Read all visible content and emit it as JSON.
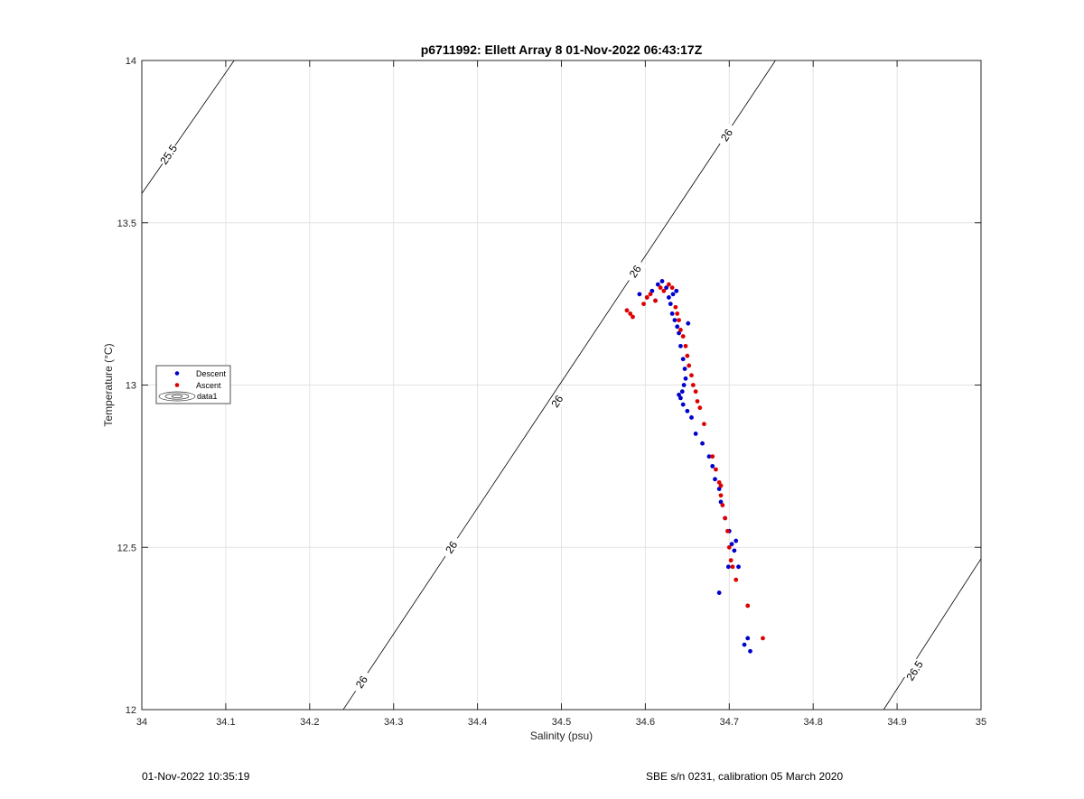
{
  "chart_data": {
    "type": "scatter",
    "title": "p6711992: Ellett Array 8 01-Nov-2022 06:43:17Z",
    "xlabel": "Salinity (psu)",
    "ylabel": "Temperature (°C)",
    "xlim": [
      34,
      35
    ],
    "ylim": [
      12,
      14
    ],
    "xticks": [
      "34",
      "34.1",
      "34.2",
      "34.3",
      "34.4",
      "34.5",
      "34.6",
      "34.7",
      "34.8",
      "34.9",
      "35"
    ],
    "yticks": [
      "12",
      "12.5",
      "13",
      "13.5",
      "14"
    ],
    "grid": true,
    "legend": {
      "placement": "left",
      "entries": [
        "Descent",
        "Ascent",
        "data1"
      ]
    },
    "series": [
      {
        "name": "Descent",
        "color": "#0000cc",
        "x": [
          34.593,
          34.602,
          34.608,
          34.612,
          34.615,
          34.62,
          34.625,
          34.628,
          34.63,
          34.632,
          34.635,
          34.638,
          34.64,
          34.642,
          34.645,
          34.647,
          34.648,
          34.646,
          34.644,
          34.642,
          34.64,
          34.645,
          34.65,
          34.655,
          34.66,
          34.668,
          34.676,
          34.68,
          34.683,
          34.688,
          34.69,
          34.695,
          34.7,
          34.703,
          34.706,
          34.699,
          34.708,
          34.711,
          34.688,
          34.718,
          34.722,
          34.725,
          34.651,
          34.637,
          34.633
        ],
        "y": [
          13.28,
          13.27,
          13.29,
          13.26,
          13.31,
          13.32,
          13.3,
          13.27,
          13.25,
          13.22,
          13.2,
          13.18,
          13.16,
          13.12,
          13.08,
          13.05,
          13.02,
          13.0,
          12.98,
          12.96,
          12.97,
          12.94,
          12.92,
          12.9,
          12.85,
          12.82,
          12.78,
          12.75,
          12.71,
          12.68,
          12.64,
          12.59,
          12.55,
          12.51,
          12.49,
          12.44,
          12.52,
          12.44,
          12.36,
          12.2,
          12.22,
          12.18,
          13.19,
          13.29,
          13.28
        ]
      },
      {
        "name": "Ascent",
        "color": "#dd0000",
        "x": [
          34.578,
          34.582,
          34.585,
          34.598,
          34.602,
          34.606,
          34.612,
          34.618,
          34.622,
          34.628,
          34.632,
          34.636,
          34.638,
          34.64,
          34.642,
          34.645,
          34.648,
          34.65,
          34.652,
          34.655,
          34.657,
          34.66,
          34.662,
          34.665,
          34.67,
          34.68,
          34.684,
          34.688,
          34.69,
          34.692,
          34.695,
          34.698,
          34.7,
          34.702,
          34.704,
          34.708,
          34.69,
          34.722,
          34.74
        ],
        "y": [
          13.23,
          13.22,
          13.21,
          13.25,
          13.27,
          13.28,
          13.26,
          13.3,
          13.29,
          13.31,
          13.3,
          13.24,
          13.22,
          13.2,
          13.17,
          13.15,
          13.12,
          13.09,
          13.06,
          13.03,
          13.0,
          12.98,
          12.95,
          12.93,
          12.88,
          12.78,
          12.74,
          12.7,
          12.66,
          12.63,
          12.59,
          12.55,
          12.5,
          12.46,
          12.44,
          12.4,
          12.69,
          12.32,
          12.22
        ]
      }
    ],
    "contours": [
      {
        "label": "25.5",
        "p1": [
          34.0,
          13.59
        ],
        "p2": [
          34.11,
          14.0
        ],
        "labels_at": [
          [
            34.032,
            13.71
          ]
        ]
      },
      {
        "label": "26",
        "p1": [
          34.24,
          12.0
        ],
        "p2": [
          34.755,
          14.0
        ],
        "labels_at": [
          [
            34.262,
            12.085
          ],
          [
            34.369,
            12.5
          ],
          [
            34.495,
            12.95
          ],
          [
            34.588,
            13.35
          ],
          [
            34.697,
            13.77
          ]
        ]
      },
      {
        "label": "26.5",
        "p1": [
          34.884,
          12.0
        ],
        "p2": [
          35.0,
          12.465
        ],
        "labels_at": [
          [
            34.921,
            12.12
          ]
        ]
      }
    ]
  },
  "footer": {
    "left": "01-Nov-2022 10:35:19",
    "right": "SBE s/n 0231, calibration 05 March 2020"
  }
}
